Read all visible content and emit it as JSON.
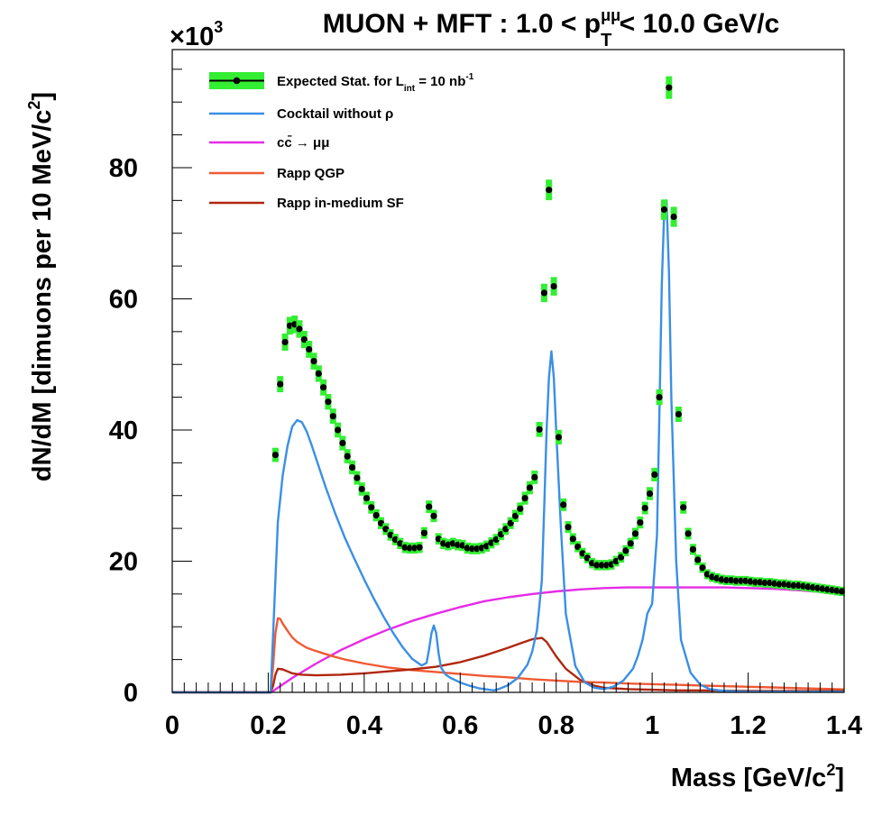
{
  "chart_data": {
    "type": "line",
    "title_parts": {
      "pre": "MUON + MFT : 1.0 < p",
      "sub": "T",
      "sup": "μμ",
      "post": " < 10.0 GeV/c"
    },
    "xlabel_parts": {
      "pre": "Mass  [GeV/c",
      "sup": "2",
      "post": "]"
    },
    "ylabel_parts": {
      "pre": "dN/dM  [dimuons per 10 MeV/c",
      "sup": "2",
      "post": "]"
    },
    "y_multiplier": {
      "base": "×10",
      "exp": "3"
    },
    "xlim": [
      0,
      1.4
    ],
    "ylim": [
      0,
      98
    ],
    "x_ticks": [
      "0",
      "0.2",
      "0.4",
      "0.6",
      "0.8",
      "1",
      "1.2",
      "1.4"
    ],
    "x_tick_values": [
      0,
      0.2,
      0.4,
      0.6,
      0.8,
      1.0,
      1.2,
      1.4
    ],
    "y_ticks": [
      "0",
      "20",
      "40",
      "60",
      "80"
    ],
    "y_tick_values": [
      0,
      20,
      40,
      60,
      80
    ],
    "legend_position": "top-left",
    "legend": [
      {
        "id": "data",
        "pre": "Expected Stat. for L",
        "sub": "int",
        "post": " = 10 nb",
        "sup": "-1"
      },
      {
        "id": "cocktail",
        "pre": "Cocktail without ρ"
      },
      {
        "id": "ccbar",
        "pre": "cc̄ → μμ"
      },
      {
        "id": "qgp",
        "pre": "Rapp QGP"
      },
      {
        "id": "sf",
        "pre": "Rapp in-medium SF"
      }
    ],
    "colors": {
      "data_marker": "#000000",
      "data_band": "#33ee33",
      "cocktail": "#3a8fe6",
      "ccbar": "#e62be6",
      "qgp": "#f05a33",
      "sf": "#b0260e"
    },
    "series": [
      {
        "id": "data",
        "style": "markers_with_band",
        "x": [
          0.215,
          0.225,
          0.235,
          0.245,
          0.255,
          0.265,
          0.275,
          0.285,
          0.295,
          0.305,
          0.315,
          0.325,
          0.335,
          0.345,
          0.355,
          0.365,
          0.375,
          0.385,
          0.395,
          0.405,
          0.415,
          0.425,
          0.435,
          0.445,
          0.455,
          0.465,
          0.475,
          0.485,
          0.495,
          0.505,
          0.515,
          0.525,
          0.535,
          0.545,
          0.555,
          0.565,
          0.575,
          0.585,
          0.595,
          0.605,
          0.615,
          0.625,
          0.635,
          0.645,
          0.655,
          0.665,
          0.675,
          0.685,
          0.695,
          0.705,
          0.715,
          0.725,
          0.735,
          0.745,
          0.755,
          0.765,
          0.775,
          0.785,
          0.795,
          0.805,
          0.815,
          0.825,
          0.835,
          0.845,
          0.855,
          0.865,
          0.875,
          0.885,
          0.895,
          0.905,
          0.915,
          0.925,
          0.935,
          0.945,
          0.955,
          0.965,
          0.975,
          0.985,
          0.995,
          1.005,
          1.015,
          1.025,
          1.035,
          1.045,
          1.055,
          1.065,
          1.075,
          1.085,
          1.095,
          1.105,
          1.115,
          1.125,
          1.135,
          1.145,
          1.155,
          1.165,
          1.175,
          1.185,
          1.195,
          1.205,
          1.215,
          1.225,
          1.235,
          1.245,
          1.255,
          1.265,
          1.275,
          1.285,
          1.295,
          1.305,
          1.315,
          1.325,
          1.335,
          1.345,
          1.355,
          1.365,
          1.375,
          1.385,
          1.395
        ],
        "y": [
          36.2,
          47.0,
          53.4,
          55.9,
          56.1,
          55.4,
          53.8,
          52.3,
          50.5,
          48.6,
          46.5,
          44.3,
          42.1,
          40.0,
          38.0,
          36.0,
          34.3,
          32.7,
          31.0,
          29.6,
          28.2,
          27.0,
          25.8,
          24.9,
          24.0,
          23.3,
          22.7,
          22.1,
          22.0,
          22.0,
          22.1,
          24.3,
          28.3,
          26.9,
          23.4,
          22.7,
          22.5,
          22.7,
          22.5,
          22.4,
          22.0,
          21.9,
          21.9,
          22.0,
          22.3,
          22.8,
          23.3,
          24.1,
          24.9,
          25.8,
          26.9,
          28.0,
          29.6,
          31.2,
          32.8,
          40.1,
          60.9,
          76.6,
          61.9,
          38.9,
          28.6,
          25.2,
          23.4,
          22.2,
          21.2,
          20.5,
          19.7,
          19.4,
          19.4,
          19.4,
          19.5,
          20.0,
          20.6,
          21.6,
          22.7,
          24.2,
          25.9,
          28.1,
          30.3,
          33.2,
          45.0,
          73.6,
          92.2,
          72.5,
          42.4,
          28.2,
          24.2,
          21.8,
          20.2,
          19.0,
          18.0,
          17.6,
          17.4,
          17.2,
          17.1,
          17.1,
          17.0,
          17.0,
          17.0,
          16.9,
          16.8,
          16.8,
          16.7,
          16.7,
          16.6,
          16.5,
          16.5,
          16.4,
          16.3,
          16.3,
          16.2,
          16.1,
          16.0,
          15.9,
          15.8,
          15.7,
          15.6,
          15.5,
          15.4
        ]
      },
      {
        "id": "cocktail",
        "x": [
          0,
          0.205,
          0.212,
          0.22,
          0.23,
          0.24,
          0.25,
          0.26,
          0.27,
          0.28,
          0.29,
          0.3,
          0.32,
          0.34,
          0.36,
          0.38,
          0.4,
          0.42,
          0.44,
          0.46,
          0.48,
          0.5,
          0.52,
          0.53,
          0.535,
          0.54,
          0.545,
          0.55,
          0.555,
          0.56,
          0.57,
          0.58,
          0.6,
          0.62,
          0.64,
          0.66,
          0.67,
          0.68,
          0.7,
          0.72,
          0.74,
          0.75,
          0.76,
          0.77,
          0.775,
          0.78,
          0.785,
          0.79,
          0.795,
          0.8,
          0.81,
          0.82,
          0.84,
          0.86,
          0.88,
          0.9,
          0.92,
          0.94,
          0.96,
          0.97,
          0.98,
          0.99,
          1.0,
          1.01,
          1.015,
          1.02,
          1.025,
          1.03,
          1.035,
          1.04,
          1.05,
          1.06,
          1.08,
          1.1,
          1.12,
          1.15,
          1.2,
          1.4
        ],
        "y": [
          0,
          0,
          12,
          26,
          33,
          37.5,
          40.5,
          41.5,
          41.2,
          39.8,
          37.8,
          35.6,
          31.2,
          27.2,
          23.5,
          20.3,
          17.2,
          14.3,
          11.6,
          9.1,
          6.9,
          5.1,
          4.1,
          4.5,
          6.5,
          9.0,
          10.2,
          9.0,
          6.0,
          3.8,
          2.7,
          2.2,
          1.5,
          1.0,
          0.6,
          0.4,
          0.3,
          0.5,
          1.1,
          2.2,
          4.2,
          6.2,
          9.5,
          17,
          28,
          40,
          48,
          52,
          48,
          40,
          25,
          12,
          4,
          1.5,
          0.7,
          0.5,
          0.9,
          1.8,
          3.6,
          5.5,
          8,
          12,
          13.5,
          24,
          42,
          62,
          73,
          75,
          64,
          45,
          20,
          8,
          3,
          1.2,
          0.5,
          0.2,
          0.1,
          0.1
        ]
      },
      {
        "id": "ccbar",
        "x": [
          0,
          0.205,
          0.21,
          0.22,
          0.25,
          0.3,
          0.35,
          0.4,
          0.45,
          0.5,
          0.55,
          0.6,
          0.65,
          0.7,
          0.75,
          0.8,
          0.85,
          0.9,
          0.95,
          1.0,
          1.05,
          1.1,
          1.15,
          1.2,
          1.25,
          1.3,
          1.35,
          1.4
        ],
        "y": [
          0,
          0,
          0.2,
          0.7,
          2.2,
          4.4,
          6.4,
          8.1,
          9.6,
          10.9,
          12.0,
          13.0,
          13.9,
          14.5,
          15.0,
          15.4,
          15.7,
          15.9,
          16.0,
          16.0,
          16.0,
          16.0,
          16.0,
          15.9,
          15.8,
          15.6,
          15.3,
          14.9
        ]
      },
      {
        "id": "qgp",
        "x": [
          0,
          0.205,
          0.21,
          0.215,
          0.22,
          0.225,
          0.23,
          0.24,
          0.25,
          0.26,
          0.28,
          0.3,
          0.33,
          0.36,
          0.4,
          0.45,
          0.5,
          0.55,
          0.6,
          0.65,
          0.7,
          0.75,
          0.8,
          0.85,
          0.9,
          0.95,
          1.0,
          1.05,
          1.1,
          1.15,
          1.2,
          1.25,
          1.3,
          1.35,
          1.4
        ],
        "y": [
          0,
          0,
          4,
          9,
          11.3,
          11.2,
          10.5,
          9.4,
          8.4,
          7.7,
          6.8,
          6.3,
          5.6,
          5.0,
          4.4,
          3.8,
          3.4,
          3.1,
          2.8,
          2.5,
          2.3,
          2.0,
          1.8,
          1.6,
          1.5,
          1.35,
          1.25,
          1.15,
          1.05,
          0.95,
          0.85,
          0.75,
          0.65,
          0.55,
          0.45
        ]
      },
      {
        "id": "sf",
        "x": [
          0,
          0.205,
          0.21,
          0.215,
          0.22,
          0.23,
          0.24,
          0.25,
          0.27,
          0.3,
          0.35,
          0.4,
          0.45,
          0.5,
          0.55,
          0.6,
          0.65,
          0.7,
          0.73,
          0.75,
          0.77,
          0.78,
          0.79,
          0.8,
          0.82,
          0.85,
          0.88,
          0.9,
          0.95,
          1.0,
          1.05,
          1.1,
          1.2,
          1.3,
          1.4
        ],
        "y": [
          0,
          0,
          1.0,
          2.7,
          3.6,
          3.5,
          3.2,
          2.9,
          2.7,
          2.6,
          2.7,
          2.9,
          3.2,
          3.5,
          3.9,
          4.6,
          5.6,
          6.8,
          7.6,
          8.1,
          8.3,
          7.7,
          6.6,
          5.5,
          3.6,
          1.9,
          1.0,
          0.7,
          0.5,
          0.4,
          0.3,
          0.3,
          0.2,
          0.2,
          0.2
        ]
      }
    ]
  }
}
